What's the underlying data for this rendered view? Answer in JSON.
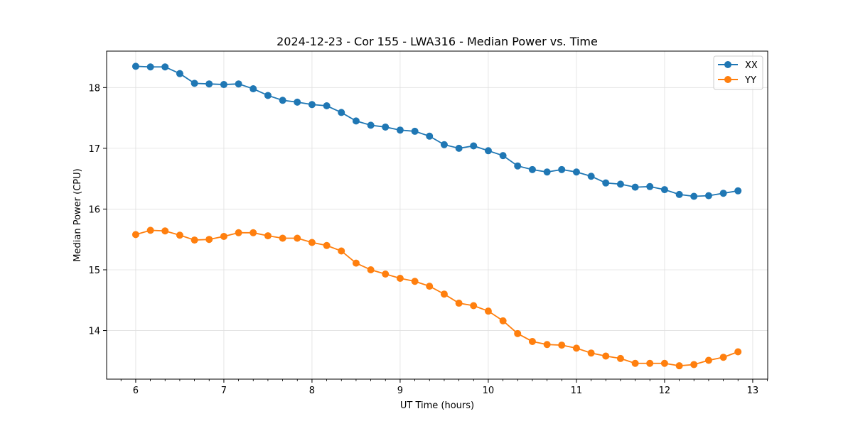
{
  "chart_data": {
    "type": "line",
    "title": "2024-12-23 - Cor 155 - LWA316 - Median Power vs. Time",
    "xlabel": "UT Time (hours)",
    "ylabel": "Median Power (CPU)",
    "xlim": [
      5.67,
      13.17
    ],
    "ylim": [
      13.2,
      18.6
    ],
    "xticks": [
      6,
      7,
      8,
      9,
      10,
      11,
      12,
      13
    ],
    "xtick_labels": [
      "6",
      "7",
      "8",
      "9",
      "10",
      "11",
      "12",
      "13"
    ],
    "yticks": [
      14,
      15,
      16,
      17,
      18
    ],
    "ytick_labels": [
      "14",
      "15",
      "16",
      "17",
      "18"
    ],
    "grid": true,
    "legend_position": "upper-right",
    "x": [
      6.0,
      6.167,
      6.333,
      6.5,
      6.667,
      6.833,
      7.0,
      7.167,
      7.333,
      7.5,
      7.667,
      7.833,
      8.0,
      8.167,
      8.333,
      8.5,
      8.667,
      8.833,
      9.0,
      9.167,
      9.333,
      9.5,
      9.667,
      9.833,
      10.0,
      10.167,
      10.333,
      10.5,
      10.667,
      10.833,
      11.0,
      11.167,
      11.333,
      11.5,
      11.667,
      11.833,
      12.0,
      12.167,
      12.333,
      12.5,
      12.667,
      12.833
    ],
    "series": [
      {
        "name": "XX",
        "color": "#1f77b4",
        "values": [
          18.35,
          18.34,
          18.34,
          18.23,
          18.07,
          18.06,
          18.05,
          18.06,
          17.98,
          17.87,
          17.79,
          17.76,
          17.72,
          17.7,
          17.59,
          17.45,
          17.38,
          17.35,
          17.3,
          17.28,
          17.2,
          17.06,
          17.0,
          17.04,
          16.96,
          16.88,
          16.71,
          16.65,
          16.61,
          16.65,
          16.61,
          16.54,
          16.43,
          16.41,
          16.36,
          16.37,
          16.32,
          16.24,
          16.21,
          16.22,
          16.26,
          16.3
        ]
      },
      {
        "name": "YY",
        "color": "#ff7f0e",
        "values": [
          15.58,
          15.65,
          15.64,
          15.57,
          15.49,
          15.5,
          15.55,
          15.61,
          15.61,
          15.56,
          15.52,
          15.52,
          15.45,
          15.4,
          15.31,
          15.11,
          15.0,
          14.93,
          14.86,
          14.81,
          14.73,
          14.6,
          14.45,
          14.41,
          14.32,
          14.16,
          13.95,
          13.82,
          13.77,
          13.76,
          13.71,
          13.63,
          13.58,
          13.54,
          13.46,
          13.46,
          13.46,
          13.42,
          13.44,
          13.51,
          13.56,
          13.65
        ]
      }
    ]
  }
}
